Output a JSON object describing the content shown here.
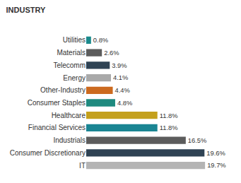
{
  "chart_data": {
    "type": "bar",
    "title": "INDUSTRY",
    "orientation": "horizontal",
    "categories": [
      "Utilities",
      "Materials",
      "Telecomm",
      "Energy",
      "Other-Industry",
      "Consumer Staples",
      "Healthcare",
      "Financial Services",
      "Industrials",
      "Consumer Discretionary",
      "IT"
    ],
    "values": [
      0.8,
      2.6,
      3.9,
      4.1,
      4.4,
      4.8,
      11.8,
      11.8,
      16.5,
      19.6,
      19.7
    ],
    "value_labels": [
      "0.8%",
      "2.6%",
      "3.9%",
      "4.1%",
      "4.4%",
      "4.8%",
      "11.8%",
      "11.8%",
      "16.5%",
      "19.6%",
      "19.7%"
    ],
    "colors": [
      "#1a8a8c",
      "#5c5c5c",
      "#2f4354",
      "#a9a9a9",
      "#cc6a1f",
      "#1f8a7f",
      "#c4a01c",
      "#1a8593",
      "#5c5c5c",
      "#2f4354",
      "#b4b4b4"
    ],
    "data_labels": true,
    "tick_labels": "y",
    "grid": false
  }
}
